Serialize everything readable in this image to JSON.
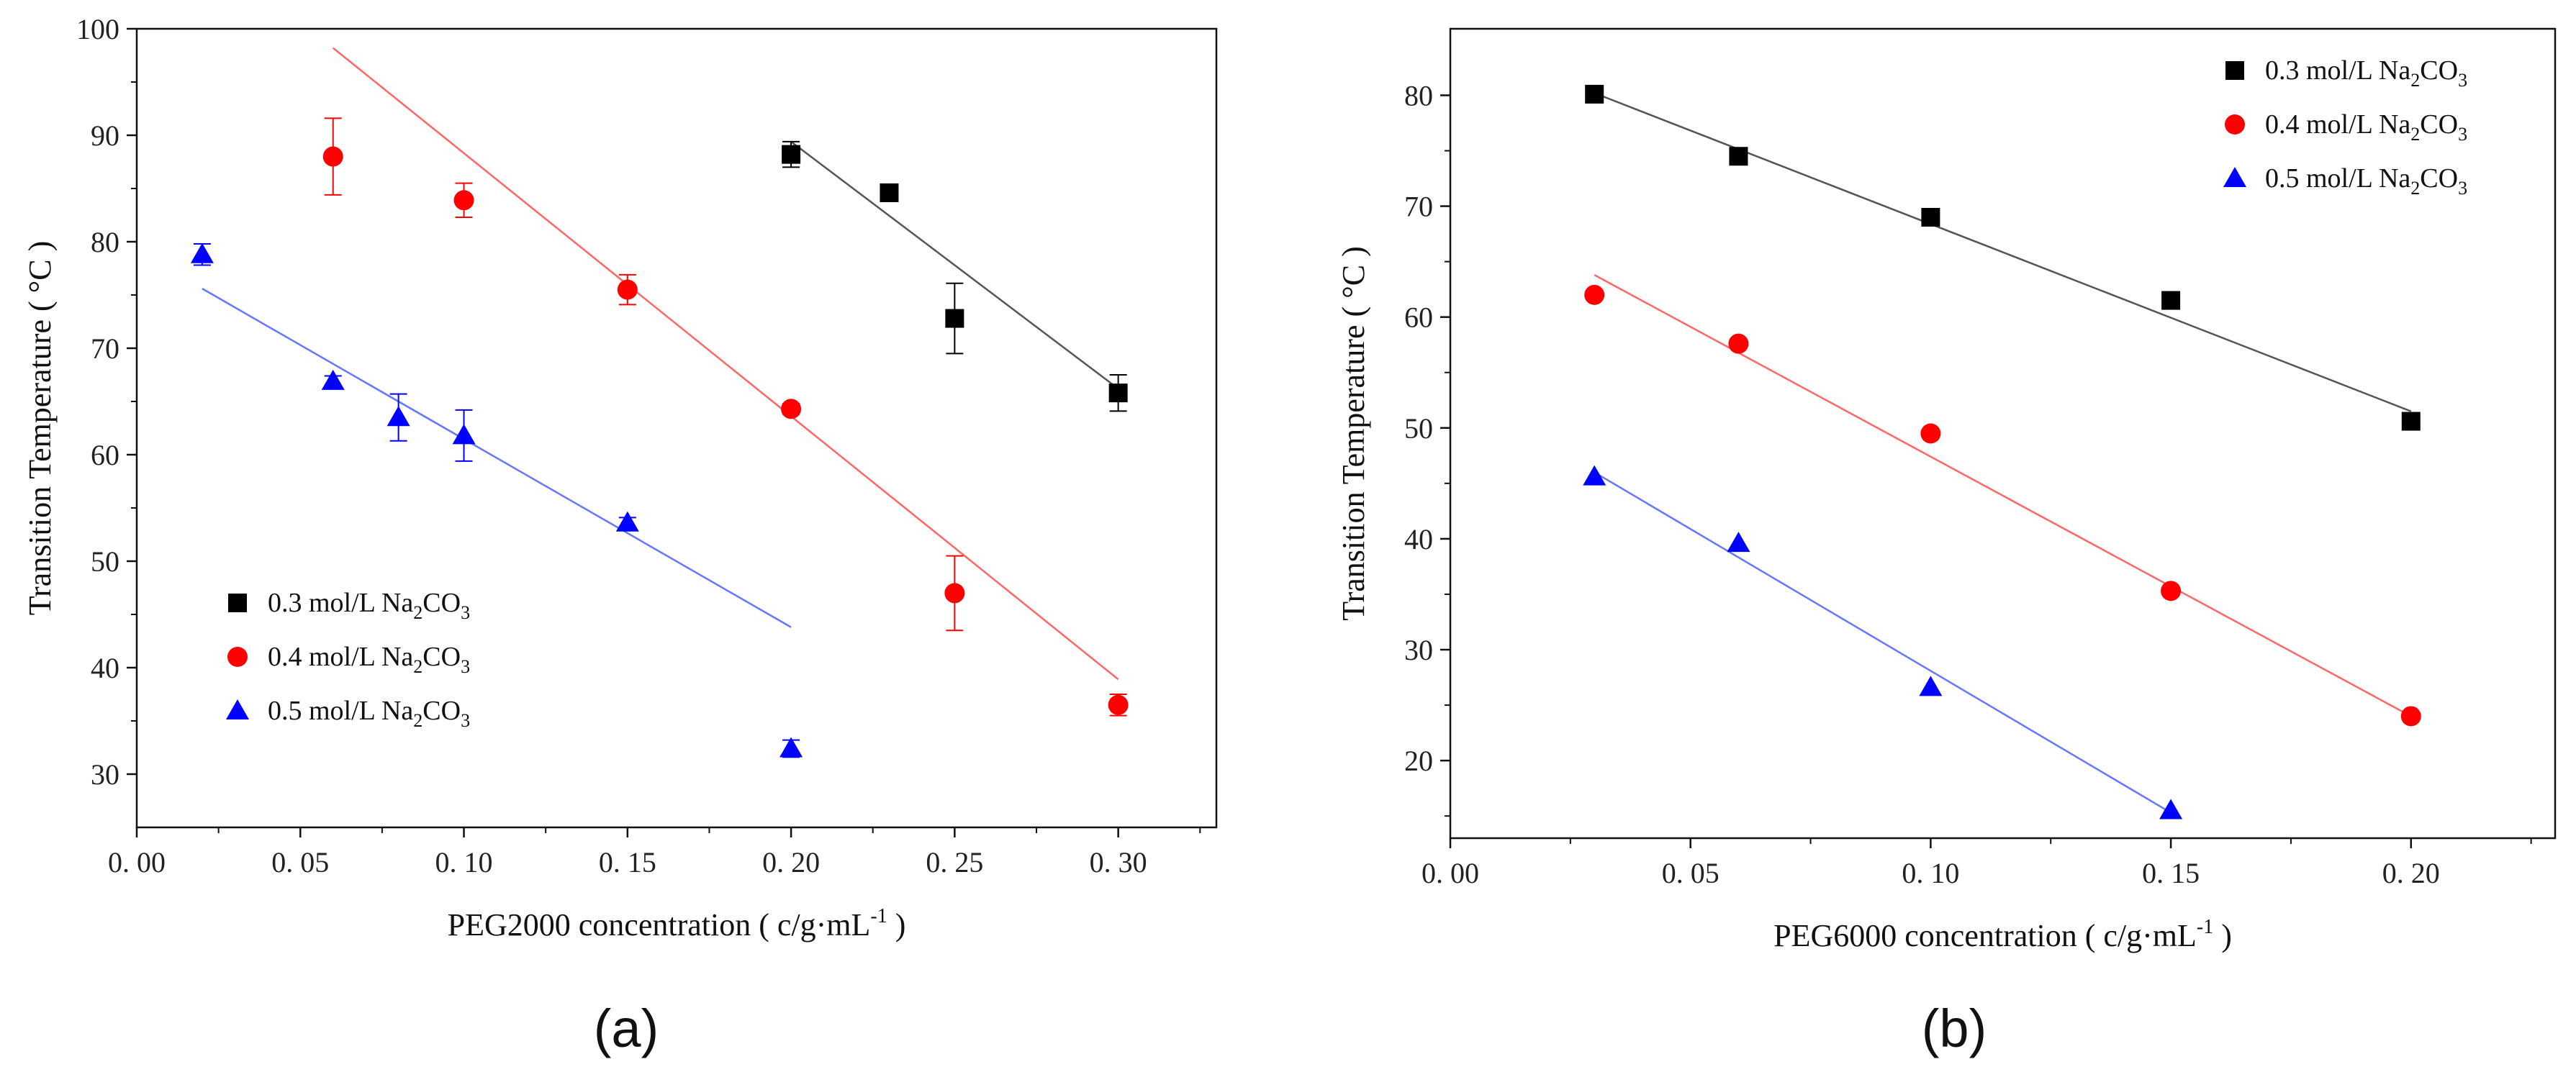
{
  "chart_data": [
    {
      "type": "scatter",
      "panel_label": "(a)",
      "title": "",
      "xlabel_prefix": "PEG2000 concentration ( c/g·mL",
      "xlabel_sup": "-1",
      "xlabel_suffix": " )",
      "ylabel": "Transition Temperature ( °C )",
      "xlim": [
        0.0,
        0.33
      ],
      "ylim": [
        25,
        100
      ],
      "xticks": [
        0.0,
        0.05,
        0.1,
        0.15,
        0.2,
        0.25,
        0.3
      ],
      "xtick_labels": [
        "0. 00",
        "0. 05",
        "0. 10",
        "0. 15",
        "0. 20",
        "0. 25",
        "0. 30"
      ],
      "yticks": [
        30,
        40,
        50,
        60,
        70,
        80,
        90,
        100
      ],
      "ytick_labels": [
        "30",
        "40",
        "50",
        "60",
        "70",
        "80",
        "90",
        "100"
      ],
      "legend_position": "lower-left",
      "series": [
        {
          "name_prefix": "0.3 mol/L Na",
          "name_sub1": "2",
          "name_mid": "CO",
          "name_sub2": "3",
          "marker": "square",
          "color": "#000000",
          "fit_color": "#555555",
          "x": [
            0.2,
            0.23,
            0.25,
            0.3
          ],
          "y": [
            88.2,
            84.6,
            72.8,
            65.8
          ],
          "err": [
            1.2,
            0.8,
            3.3,
            1.7
          ],
          "fit": [
            [
              0.2,
              89.4
            ],
            [
              0.3,
              66.2
            ]
          ]
        },
        {
          "name_prefix": "0.4 mol/L Na",
          "name_sub1": "2",
          "name_mid": "CO",
          "name_sub2": "3",
          "marker": "circle",
          "color": "#ff0000",
          "fit_color": "#ff6666",
          "x": [
            0.06,
            0.1,
            0.15,
            0.2,
            0.25,
            0.3
          ],
          "y": [
            88.0,
            83.9,
            75.5,
            64.3,
            47.0,
            36.5
          ],
          "err": [
            3.6,
            1.6,
            1.4,
            0.5,
            3.5,
            1.0
          ],
          "fit": [
            [
              0.06,
              98.2
            ],
            [
              0.3,
              38.9
            ]
          ]
        },
        {
          "name_prefix": "0.5 mol/L Na",
          "name_sub1": "2",
          "name_mid": "CO",
          "name_sub2": "3",
          "marker": "triangle",
          "color": "#0000ff",
          "fit_color": "#6677ff",
          "x": [
            0.02,
            0.06,
            0.08,
            0.1,
            0.15,
            0.2
          ],
          "y": [
            78.8,
            66.9,
            63.5,
            61.8,
            53.6,
            32.4
          ],
          "err": [
            1.0,
            0.5,
            2.2,
            2.4,
            0.5,
            0.8
          ],
          "fit": [
            [
              0.02,
              75.6
            ],
            [
              0.2,
              43.8
            ]
          ]
        }
      ]
    },
    {
      "type": "scatter",
      "panel_label": "(b)",
      "title": "",
      "xlabel_prefix": "PEG6000 concentration ( c/g·mL",
      "xlabel_sup": "-1",
      "xlabel_suffix": " )",
      "ylabel": "Transition Temperature ( °C )",
      "xlim": [
        0.0,
        0.23
      ],
      "ylim": [
        13,
        86
      ],
      "xticks": [
        0.0,
        0.05,
        0.1,
        0.15,
        0.2
      ],
      "xtick_labels": [
        "0. 00",
        "0. 05",
        "0. 10",
        "0. 15",
        "0. 20"
      ],
      "yticks": [
        20,
        30,
        40,
        50,
        60,
        70,
        80
      ],
      "ytick_labels": [
        "20",
        "30",
        "40",
        "50",
        "60",
        "70",
        "80"
      ],
      "legend_position": "top-right",
      "series": [
        {
          "name_prefix": "0.3 mol/L Na",
          "name_sub1": "2",
          "name_mid": "CO",
          "name_sub2": "3",
          "marker": "square",
          "color": "#000000",
          "fit_color": "#555555",
          "x": [
            0.03,
            0.06,
            0.1,
            0.15,
            0.2
          ],
          "y": [
            80.1,
            74.5,
            69.0,
            61.5,
            50.6
          ],
          "err": [],
          "fit": [
            [
              0.03,
              80.2
            ],
            [
              0.2,
              51.5
            ]
          ]
        },
        {
          "name_prefix": "0.4 mol/L Na",
          "name_sub1": "2",
          "name_mid": "CO",
          "name_sub2": "3",
          "marker": "circle",
          "color": "#ff0000",
          "fit_color": "#ff6666",
          "x": [
            0.03,
            0.06,
            0.1,
            0.15,
            0.2
          ],
          "y": [
            62.0,
            57.6,
            49.5,
            35.3,
            24.0
          ],
          "err": [],
          "fit": [
            [
              0.03,
              63.8
            ],
            [
              0.2,
              24.0
            ]
          ]
        },
        {
          "name_prefix": "0.5 mol/L Na",
          "name_sub1": "2",
          "name_mid": "CO",
          "name_sub2": "3",
          "marker": "triangle",
          "color": "#0000ff",
          "fit_color": "#6677ff",
          "x": [
            0.03,
            0.06,
            0.1,
            0.15
          ],
          "y": [
            45.6,
            39.6,
            26.6,
            15.5
          ],
          "err": [],
          "fit": [
            [
              0.03,
              46.0
            ],
            [
              0.15,
              15.3
            ]
          ]
        }
      ]
    }
  ]
}
